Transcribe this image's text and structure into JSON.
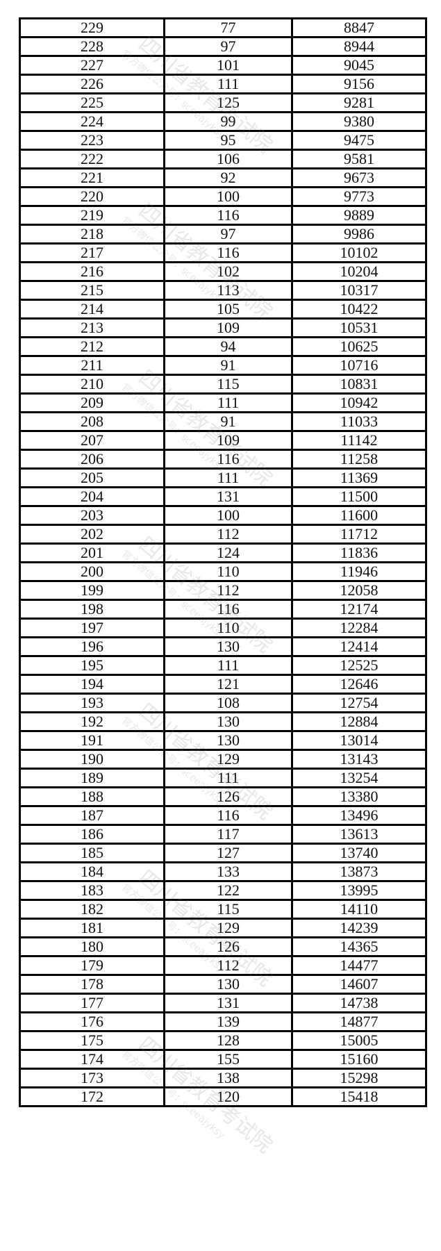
{
  "watermark": {
    "title": "四川省教育考试院",
    "subtitle": "官方微信公众号：sceeajyksy"
  },
  "rows": [
    [
      "229",
      "77",
      "8847"
    ],
    [
      "228",
      "97",
      "8944"
    ],
    [
      "227",
      "101",
      "9045"
    ],
    [
      "226",
      "111",
      "9156"
    ],
    [
      "225",
      "125",
      "9281"
    ],
    [
      "224",
      "99",
      "9380"
    ],
    [
      "223",
      "95",
      "9475"
    ],
    [
      "222",
      "106",
      "9581"
    ],
    [
      "221",
      "92",
      "9673"
    ],
    [
      "220",
      "100",
      "9773"
    ],
    [
      "219",
      "116",
      "9889"
    ],
    [
      "218",
      "97",
      "9986"
    ],
    [
      "217",
      "116",
      "10102"
    ],
    [
      "216",
      "102",
      "10204"
    ],
    [
      "215",
      "113",
      "10317"
    ],
    [
      "214",
      "105",
      "10422"
    ],
    [
      "213",
      "109",
      "10531"
    ],
    [
      "212",
      "94",
      "10625"
    ],
    [
      "211",
      "91",
      "10716"
    ],
    [
      "210",
      "115",
      "10831"
    ],
    [
      "209",
      "111",
      "10942"
    ],
    [
      "208",
      "91",
      "11033"
    ],
    [
      "207",
      "109",
      "11142"
    ],
    [
      "206",
      "116",
      "11258"
    ],
    [
      "205",
      "111",
      "11369"
    ],
    [
      "204",
      "131",
      "11500"
    ],
    [
      "203",
      "100",
      "11600"
    ],
    [
      "202",
      "112",
      "11712"
    ],
    [
      "201",
      "124",
      "11836"
    ],
    [
      "200",
      "110",
      "11946"
    ],
    [
      "199",
      "112",
      "12058"
    ],
    [
      "198",
      "116",
      "12174"
    ],
    [
      "197",
      "110",
      "12284"
    ],
    [
      "196",
      "130",
      "12414"
    ],
    [
      "195",
      "111",
      "12525"
    ],
    [
      "194",
      "121",
      "12646"
    ],
    [
      "193",
      "108",
      "12754"
    ],
    [
      "192",
      "130",
      "12884"
    ],
    [
      "191",
      "130",
      "13014"
    ],
    [
      "190",
      "129",
      "13143"
    ],
    [
      "189",
      "111",
      "13254"
    ],
    [
      "188",
      "126",
      "13380"
    ],
    [
      "187",
      "116",
      "13496"
    ],
    [
      "186",
      "117",
      "13613"
    ],
    [
      "185",
      "127",
      "13740"
    ],
    [
      "184",
      "133",
      "13873"
    ],
    [
      "183",
      "122",
      "13995"
    ],
    [
      "182",
      "115",
      "14110"
    ],
    [
      "181",
      "129",
      "14239"
    ],
    [
      "180",
      "126",
      "14365"
    ],
    [
      "179",
      "112",
      "14477"
    ],
    [
      "178",
      "130",
      "14607"
    ],
    [
      "177",
      "131",
      "14738"
    ],
    [
      "176",
      "139",
      "14877"
    ],
    [
      "175",
      "128",
      "15005"
    ],
    [
      "174",
      "155",
      "15160"
    ],
    [
      "173",
      "138",
      "15298"
    ],
    [
      "172",
      "120",
      "15418"
    ]
  ]
}
